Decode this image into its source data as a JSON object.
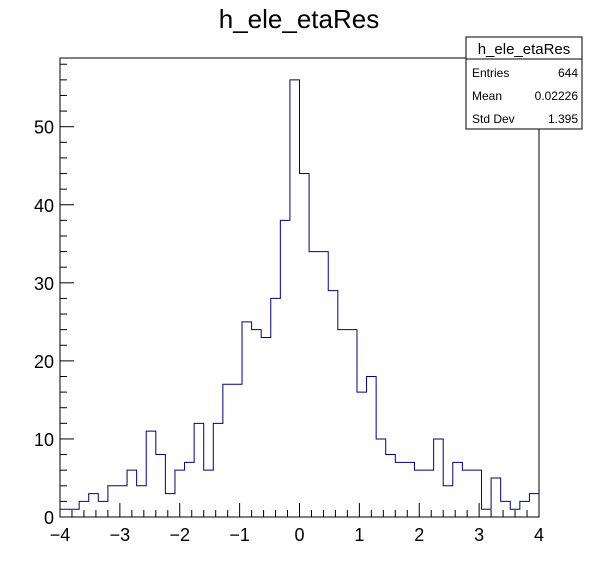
{
  "chart_data": {
    "type": "histogram",
    "title": "h_ele_etaRes",
    "xlabel": "",
    "ylabel": "",
    "xlim": [
      -4,
      4
    ],
    "ylim": [
      0,
      58.8
    ],
    "x_ticks": [
      -4,
      -3,
      -2,
      -1,
      0,
      1,
      2,
      3,
      4
    ],
    "y_ticks": [
      0,
      10,
      20,
      30,
      40,
      50
    ],
    "bin_edges_start": -4,
    "bin_width": 0.16,
    "series": [
      {
        "values": [
          1,
          1,
          2,
          3,
          2,
          4,
          4,
          6,
          4,
          11,
          8,
          3,
          6,
          7,
          12,
          6,
          12,
          17,
          17,
          25,
          24,
          23,
          28,
          38,
          56,
          44,
          34,
          34,
          29,
          24,
          24,
          16,
          18,
          10,
          8,
          7,
          7,
          6,
          6,
          10,
          4,
          7,
          6,
          6,
          1,
          5,
          2,
          1,
          2,
          3
        ],
        "color": "#000080"
      }
    ],
    "stats": {
      "title": "h_ele_etaRes",
      "rows": [
        {
          "label": "Entries",
          "value": "644"
        },
        {
          "label": "Mean",
          "value": "0.02226"
        },
        {
          "label": "Std Dev",
          "value": "1.395"
        }
      ]
    }
  }
}
